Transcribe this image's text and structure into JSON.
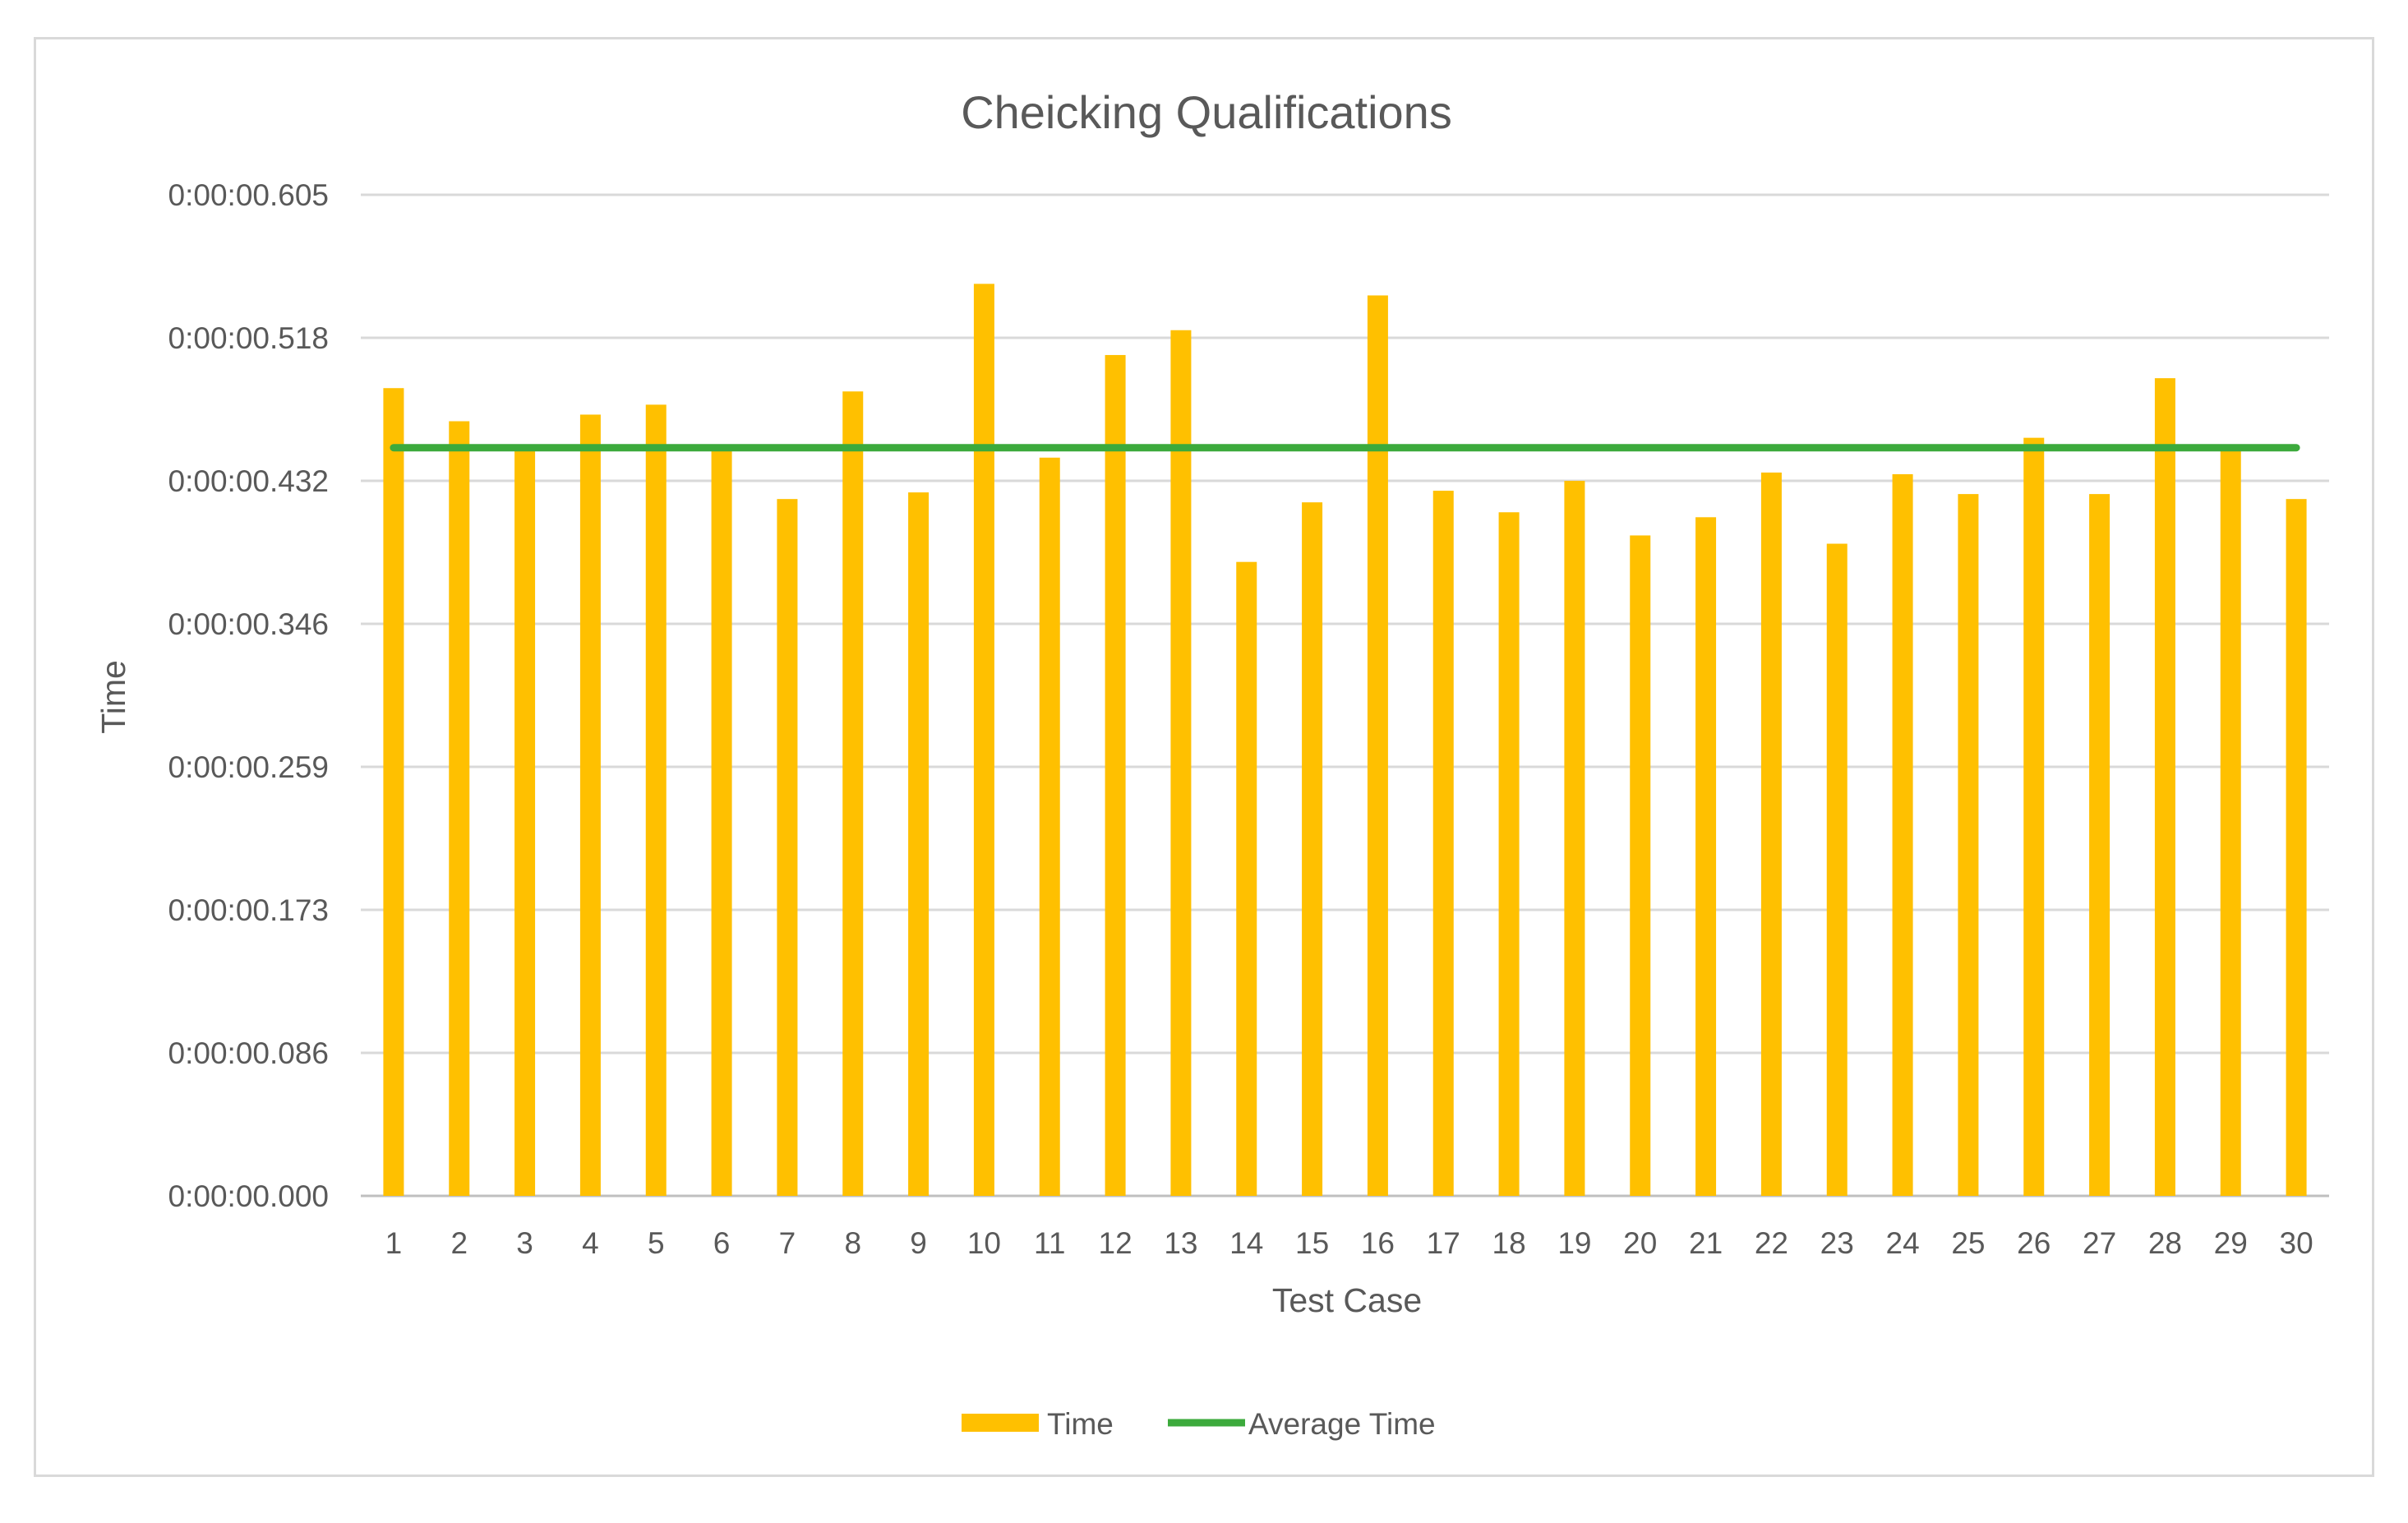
{
  "chart_data": {
    "type": "bar",
    "title": "Cheicking Qualifications",
    "xlabel": "Test Case",
    "ylabel": "Time",
    "categories": [
      "1",
      "2",
      "3",
      "4",
      "5",
      "6",
      "7",
      "8",
      "9",
      "10",
      "11",
      "12",
      "13",
      "14",
      "15",
      "16",
      "17",
      "18",
      "19",
      "20",
      "21",
      "22",
      "23",
      "24",
      "25",
      "26",
      "27",
      "28",
      "29",
      "30"
    ],
    "y_tick_labels": [
      "0:00:00.000",
      "0:00:00.086",
      "0:00:00.173",
      "0:00:00.259",
      "0:00:00.346",
      "0:00:00.432",
      "0:00:00.518",
      "0:00:00.605"
    ],
    "y_tick_values": [
      0,
      0.0864,
      0.1728,
      0.2592,
      0.3456,
      0.432,
      0.5184,
      0.6048
    ],
    "ylim": [
      0,
      0.6048
    ],
    "grid": true,
    "legend_position": "bottom",
    "series": [
      {
        "name": "Time",
        "type": "bar",
        "color": "#FFC000",
        "values": [
          0.488,
          0.468,
          0.451,
          0.472,
          0.478,
          0.452,
          0.421,
          0.486,
          0.425,
          0.551,
          0.446,
          0.508,
          0.523,
          0.383,
          0.419,
          0.544,
          0.426,
          0.413,
          0.432,
          0.399,
          0.41,
          0.437,
          0.394,
          0.436,
          0.424,
          0.458,
          0.424,
          0.494,
          0.453,
          0.421
        ]
      },
      {
        "name": "Average Time",
        "type": "line",
        "color": "#3CAA3C",
        "values": [
          0.452,
          0.452,
          0.452,
          0.452,
          0.452,
          0.452,
          0.452,
          0.452,
          0.452,
          0.452,
          0.452,
          0.452,
          0.452,
          0.452,
          0.452,
          0.452,
          0.452,
          0.452,
          0.452,
          0.452,
          0.452,
          0.452,
          0.452,
          0.452,
          0.452,
          0.452,
          0.452,
          0.452,
          0.452,
          0.452
        ]
      }
    ]
  }
}
